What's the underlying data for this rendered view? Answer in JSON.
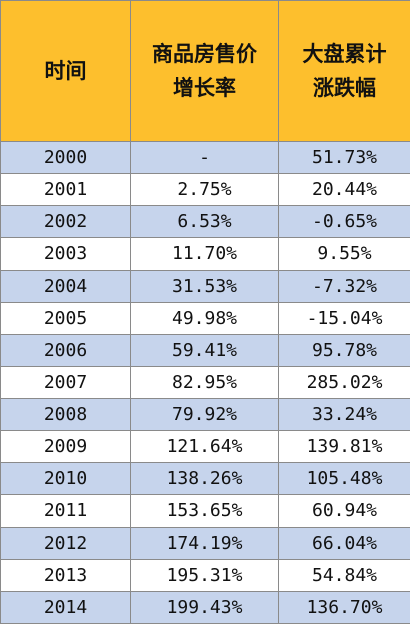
{
  "table": {
    "header": [
      [
        "时间"
      ],
      [
        "商品房售价",
        "增长率"
      ],
      [
        "大盘累计",
        "涨跌幅"
      ]
    ],
    "rows": [
      [
        "2000",
        "-",
        "51.73%"
      ],
      [
        "2001",
        "2.75%",
        "20.44%"
      ],
      [
        "2002",
        "6.53%",
        "-0.65%"
      ],
      [
        "2003",
        "11.70%",
        "9.55%"
      ],
      [
        "2004",
        "31.53%",
        "-7.32%"
      ],
      [
        "2005",
        "49.98%",
        "-15.04%"
      ],
      [
        "2006",
        "59.41%",
        "95.78%"
      ],
      [
        "2007",
        "82.95%",
        "285.02%"
      ],
      [
        "2008",
        "79.92%",
        "33.24%"
      ],
      [
        "2009",
        "121.64%",
        "139.81%"
      ],
      [
        "2010",
        "138.26%",
        "105.48%"
      ],
      [
        "2011",
        "153.65%",
        "60.94%"
      ],
      [
        "2012",
        "174.19%",
        "66.04%"
      ],
      [
        "2013",
        "195.31%",
        "54.84%"
      ],
      [
        "2014",
        "199.43%",
        "136.70%"
      ]
    ]
  }
}
